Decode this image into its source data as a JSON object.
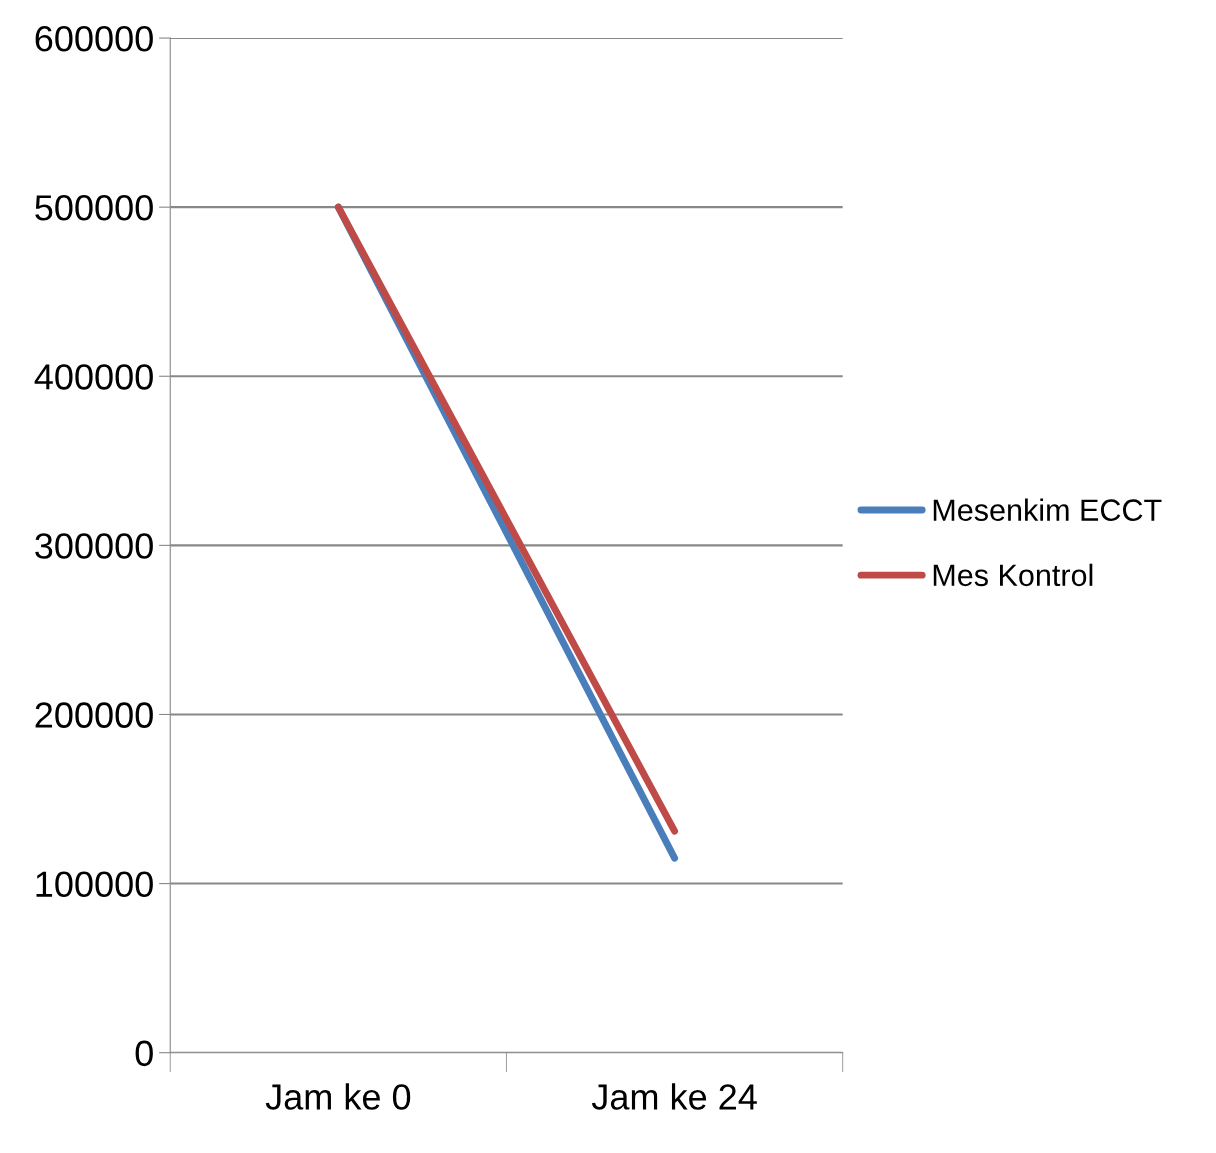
{
  "chart_data": {
    "type": "line",
    "categories": [
      "Jam ke 0",
      "Jam ke 24"
    ],
    "series": [
      {
        "name": "Mesenkim ECCT",
        "color": "#4a7ebb",
        "values": [
          500000,
          115000
        ]
      },
      {
        "name": "Mes Kontrol",
        "color": "#be4b48",
        "values": [
          500000,
          131000
        ]
      }
    ],
    "ylim": [
      0,
      600000
    ],
    "yticks": [
      0,
      100000,
      200000,
      300000,
      400000,
      500000,
      600000
    ],
    "grid": "y",
    "legend": "right",
    "marker": "none"
  }
}
